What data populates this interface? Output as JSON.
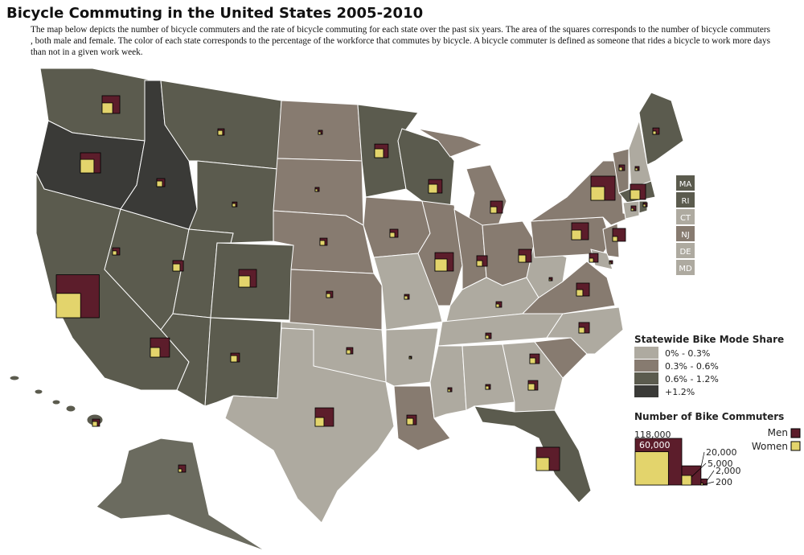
{
  "title": "Bicycle Commuting in the United States 2005-2010",
  "description": "The map below depicts the number of bicycle commuters and the rate of bicycle commuting for each state over the past six years. The area of the squares corresponds to the number of bicycle commuters , both male and female. The color of each state corresponds to the percentage of the workforce that commutes by bicycle. A bicycle commuter is defined as someone that rides a bicycle to work more days than not in a given work week.",
  "small_state_labels": [
    {
      "label": "MA",
      "class": 2
    },
    {
      "label": "RI",
      "class": 2
    },
    {
      "label": "CT",
      "class": 0
    },
    {
      "label": "NJ",
      "class": 1
    },
    {
      "label": "DE",
      "class": 0
    },
    {
      "label": "MD",
      "class": 0
    }
  ],
  "mode_share_legend": {
    "title": "Statewide Bike Mode Share",
    "classes": [
      {
        "label": "0% - 0.3%",
        "color": "#aeaaa0"
      },
      {
        "label": "0.3% - 0.6%",
        "color": "#877b70"
      },
      {
        "label": "0.6% - 1.2%",
        "color": "#5b5b4e"
      },
      {
        "label": "+1.2%",
        "color": "#3a3a37"
      }
    ]
  },
  "commuters_legend": {
    "title": "Number of Bike Commuters",
    "men": {
      "label": "Men",
      "color": "#5c1d2b"
    },
    "women": {
      "label": "Women",
      "color": "#e3d46c"
    },
    "men_sizes": [
      {
        "value": 118000,
        "label": "118,000"
      },
      {
        "value": 20000,
        "label": "20,000"
      },
      {
        "value": 2000,
        "label": "2,000"
      }
    ],
    "women_sizes": [
      {
        "value": 60000,
        "label": "60,000"
      },
      {
        "value": 5000,
        "label": "5,000"
      },
      {
        "value": 200,
        "label": "200"
      }
    ]
  },
  "state_squares": [
    {
      "men": 17000,
      "women": 6000
    },
    {
      "men": 22000,
      "women": 10000
    },
    {
      "men": 100000,
      "women": 32000
    },
    {
      "men": 2800,
      "women": 900
    },
    {
      "men": 3500,
      "women": 1700
    },
    {
      "men": 2200,
      "women": 1200
    },
    {
      "men": 1200,
      "women": 560
    },
    {
      "men": 6000,
      "women": 2800
    },
    {
      "men": 17000,
      "women": 6900
    },
    {
      "men": 20000,
      "women": 5000
    },
    {
      "men": 4200,
      "women": 2200
    },
    {
      "men": 880,
      "women": 320
    },
    {
      "men": 880,
      "women": 320
    },
    {
      "men": 2800,
      "women": 1260
    },
    {
      "men": 2200,
      "women": 880
    },
    {
      "men": 2200,
      "women": 880
    },
    {
      "men": 18500,
      "women": 4200
    },
    {
      "men": 10000,
      "women": 4200
    },
    {
      "men": 3500,
      "women": 1260
    },
    {
      "men": 1260,
      "women": 560
    },
    {
      "men": 320,
      "women": 140
    },
    {
      "men": 5000,
      "women": 2200
    },
    {
      "men": 10000,
      "women": 4200
    },
    {
      "men": 18500,
      "women": 7900
    },
    {
      "men": 7900,
      "women": 2200
    },
    {
      "men": 6000,
      "women": 1700
    },
    {
      "men": 9000,
      "women": 2800
    },
    {
      "men": 1700,
      "women": 560
    },
    {
      "men": 1700,
      "women": 560
    },
    {
      "men": 880,
      "women": 320
    },
    {
      "men": 1260,
      "women": 560
    },
    {
      "men": 5000,
      "women": 2200
    },
    {
      "men": 29500,
      "women": 9000
    },
    {
      "men": 5000,
      "women": 1700
    },
    {
      "men": 6000,
      "women": 1700
    },
    {
      "men": 9000,
      "women": 2200
    },
    {
      "men": 560,
      "women": 140
    },
    {
      "men": 15500,
      "women": 5000
    },
    {
      "men": 31600,
      "women": 10000
    },
    {
      "men": 2200,
      "women": 560
    },
    {
      "men": 1700,
      "women": 560
    },
    {
      "men": 880,
      "women": 320
    },
    {
      "men": 12700,
      "women": 5000
    },
    {
      "men": 1260,
      "women": 320
    },
    {
      "men": 880,
      "women": 320
    },
    {
      "men": 9000,
      "women": 1260
    },
    {
      "men": 560,
      "women": 140
    },
    {
      "men": 4200,
      "women": 880
    },
    {
      "men": 2800,
      "women": 560
    },
    {
      "men": 2800,
      "women": 1260
    }
  ]
}
